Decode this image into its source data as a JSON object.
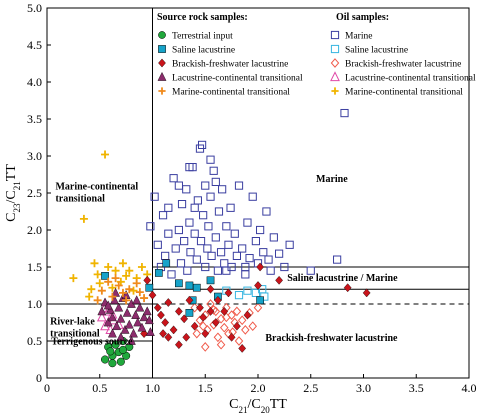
{
  "chart_data": {
    "type": "scatter",
    "xlabel_parts": [
      "C",
      "21",
      "/C",
      "20",
      "TT"
    ],
    "ylabel_parts": [
      "C",
      "23",
      "/C",
      "21",
      "TT"
    ],
    "xlim": [
      0,
      4.0
    ],
    "ylim": [
      0,
      5.0
    ],
    "xticks": [
      "0",
      "0.5",
      "1.0",
      "1.5",
      "2.0",
      "2.5",
      "3.0",
      "3.5",
      "4.0"
    ],
    "yticks": [
      "0",
      "0.5",
      "1.0",
      "1.5",
      "2.0",
      "2.5",
      "3.0",
      "3.5",
      "4.0",
      "4.5",
      "5.0"
    ],
    "grid": false,
    "legend_position": "top",
    "legend_source_title": "Source rock samples:",
    "legend_oil_title": "Oil samples:",
    "legend_source_items": [
      {
        "label": "Terrestrial input",
        "marker": "circle",
        "color": "#20a83c"
      },
      {
        "label": "Saline lacustrine",
        "marker": "square",
        "color": "#16a3c9"
      },
      {
        "label": "Brackish-freshwater lacustrine",
        "marker": "diamond",
        "color": "#c9141b"
      },
      {
        "label": "Lacustrine-continental transitional",
        "marker": "triangle",
        "color": "#8c2c6c"
      },
      {
        "label": "Marine-continental transitional",
        "marker": "plus",
        "color": "#f08a1c"
      }
    ],
    "legend_oil_items": [
      {
        "label": "Marine",
        "marker": "square",
        "color": "#3a3ea0"
      },
      {
        "label": "Saline lacustrine",
        "marker": "square",
        "color": "#36b5e0"
      },
      {
        "label": "Brackish-freshwater lacustrine",
        "marker": "diamond",
        "color": "#f05a4a"
      },
      {
        "label": "Lacustrine-continental transitional",
        "marker": "triangle",
        "color": "#e04aa8"
      },
      {
        "label": "Marine-continental transitional",
        "marker": "plus",
        "color": "#f0b400"
      }
    ],
    "region_labels": [
      {
        "lines": [
          "Marine"
        ]
      },
      {
        "lines": [
          "Marine-continental",
          "transitional"
        ]
      },
      {
        "lines": [
          "Saline lacustrine / Marine"
        ]
      },
      {
        "lines": [
          "River-lake",
          "transitional"
        ]
      },
      {
        "lines": [
          "Brackish-freshwater lacustrine"
        ]
      },
      {
        "lines": [
          "Terrigenous source"
        ]
      }
    ],
    "boundaries": {
      "vertical_x": 1.0,
      "left_horizontal_lines": [
        0.5,
        1.0
      ],
      "right_horizontal_lines": [
        1.2,
        1.5
      ],
      "dashed_y": 1.0
    },
    "series": [
      {
        "group": "source",
        "label": "Terrestrial input",
        "marker": "circle",
        "filled": true,
        "color": "#20a83c",
        "points": [
          [
            0.55,
            0.25
          ],
          [
            0.58,
            0.42
          ],
          [
            0.62,
            0.3
          ],
          [
            0.65,
            0.45
          ],
          [
            0.68,
            0.35
          ],
          [
            0.7,
            0.22
          ],
          [
            0.72,
            0.5
          ],
          [
            0.75,
            0.3
          ],
          [
            0.78,
            0.42
          ],
          [
            0.62,
            0.2
          ],
          [
            0.72,
            0.38
          ],
          [
            0.6,
            0.36
          ]
        ]
      },
      {
        "group": "source",
        "label": "Saline lacustrine",
        "marker": "square",
        "filled": true,
        "color": "#16a3c9",
        "points": [
          [
            0.55,
            1.38
          ],
          [
            0.97,
            1.22
          ],
          [
            1.06,
            1.42
          ],
          [
            1.13,
            1.55
          ],
          [
            1.25,
            1.28
          ],
          [
            1.35,
            1.25
          ],
          [
            1.42,
            1.22
          ],
          [
            1.38,
            1.05
          ],
          [
            1.35,
            0.88
          ],
          [
            1.55,
            1.32
          ],
          [
            1.62,
            1.1
          ],
          [
            2.02,
            1.05
          ]
        ]
      },
      {
        "group": "source",
        "label": "Brackish-freshwater lacustrine",
        "marker": "diamond",
        "filled": true,
        "color": "#c9141b",
        "points": [
          [
            0.95,
            1.32
          ],
          [
            1.0,
            1.12
          ],
          [
            1.05,
            0.95
          ],
          [
            1.08,
            0.85
          ],
          [
            1.12,
            0.75
          ],
          [
            1.15,
            1.02
          ],
          [
            1.2,
            0.65
          ],
          [
            1.25,
            0.9
          ],
          [
            1.3,
            0.8
          ],
          [
            1.32,
            0.55
          ],
          [
            1.35,
            1.05
          ],
          [
            1.4,
            0.7
          ],
          [
            1.45,
            0.95
          ],
          [
            1.48,
            0.82
          ],
          [
            1.5,
            0.6
          ],
          [
            1.55,
            0.9
          ],
          [
            1.6,
            0.75
          ],
          [
            1.62,
            1.05
          ],
          [
            1.68,
            0.9
          ],
          [
            1.75,
            0.55
          ],
          [
            1.8,
            0.7
          ],
          [
            1.85,
            0.4
          ],
          [
            1.9,
            0.85
          ],
          [
            2.0,
            1.25
          ],
          [
            2.02,
            1.5
          ],
          [
            2.2,
            1.32
          ],
          [
            1.25,
            0.45
          ],
          [
            1.15,
            0.55
          ],
          [
            2.85,
            1.22
          ],
          [
            3.03,
            1.15
          ],
          [
            1.72,
            1.15
          ],
          [
            1.55,
            1.2
          ],
          [
            0.92,
            0.6
          ],
          [
            1.1,
            0.6
          ]
        ]
      },
      {
        "group": "source",
        "label": "Lacustrine-continental transitional",
        "marker": "triangle",
        "filled": true,
        "color": "#8c2c6c",
        "points": [
          [
            0.52,
            0.9
          ],
          [
            0.55,
            1.02
          ],
          [
            0.58,
            0.75
          ],
          [
            0.6,
            0.92
          ],
          [
            0.62,
            0.82
          ],
          [
            0.64,
            1.05
          ],
          [
            0.66,
            0.7
          ],
          [
            0.68,
            0.95
          ],
          [
            0.7,
            0.8
          ],
          [
            0.72,
            1.08
          ],
          [
            0.74,
            0.65
          ],
          [
            0.76,
            0.88
          ],
          [
            0.78,
            0.72
          ],
          [
            0.8,
            1.0
          ],
          [
            0.82,
            0.6
          ],
          [
            0.84,
            0.85
          ],
          [
            0.86,
            0.75
          ],
          [
            0.88,
            0.95
          ],
          [
            0.9,
            0.68
          ],
          [
            0.92,
            0.82
          ],
          [
            0.95,
            0.9
          ],
          [
            0.97,
            0.78
          ],
          [
            0.62,
            0.6
          ],
          [
            0.7,
            0.55
          ],
          [
            0.8,
            0.5
          ],
          [
            0.75,
            1.12
          ],
          [
            0.65,
            1.15
          ],
          [
            0.58,
            0.98
          ],
          [
            0.85,
            1.05
          ],
          [
            0.98,
            0.62
          ]
        ]
      },
      {
        "group": "source",
        "label": "Marine-continental transitional",
        "marker": "plus",
        "filled": true,
        "color": "#f08a1c",
        "points": [
          [
            0.48,
            1.05
          ],
          [
            0.52,
            1.18
          ],
          [
            0.58,
            1.3
          ],
          [
            0.62,
            1.1
          ],
          [
            0.68,
            1.25
          ],
          [
            0.72,
            1.15
          ],
          [
            0.78,
            1.2
          ],
          [
            0.85,
            1.28
          ],
          [
            0.92,
            1.08
          ],
          [
            0.65,
            1.35
          ],
          [
            0.75,
            1.05
          ],
          [
            0.88,
            1.16
          ]
        ]
      },
      {
        "group": "oil",
        "label": "Marine",
        "marker": "square",
        "filled": false,
        "color": "#3a3ea0",
        "points": [
          [
            0.98,
            2.05
          ],
          [
            1.02,
            2.45
          ],
          [
            1.05,
            1.8
          ],
          [
            1.08,
            1.5
          ],
          [
            1.1,
            2.2
          ],
          [
            1.12,
            1.65
          ],
          [
            1.15,
            1.95
          ],
          [
            1.18,
            1.4
          ],
          [
            1.2,
            2.7
          ],
          [
            1.22,
            1.75
          ],
          [
            1.25,
            2.0
          ],
          [
            1.27,
            1.55
          ],
          [
            1.28,
            2.35
          ],
          [
            1.3,
            1.85
          ],
          [
            1.32,
            2.55
          ],
          [
            1.33,
            1.45
          ],
          [
            1.35,
            2.1
          ],
          [
            1.36,
            1.7
          ],
          [
            1.38,
            2.85
          ],
          [
            1.4,
            1.95
          ],
          [
            1.42,
            1.6
          ],
          [
            1.43,
            2.4
          ],
          [
            1.45,
            3.1
          ],
          [
            1.46,
            1.85
          ],
          [
            1.47,
            3.15
          ],
          [
            1.48,
            2.2
          ],
          [
            1.5,
            1.5
          ],
          [
            1.5,
            2.6
          ],
          [
            1.52,
            1.75
          ],
          [
            1.53,
            2.05
          ],
          [
            1.55,
            2.45
          ],
          [
            1.56,
            1.65
          ],
          [
            1.58,
            2.8
          ],
          [
            1.6,
            1.9
          ],
          [
            1.62,
            1.45
          ],
          [
            1.63,
            2.25
          ],
          [
            1.65,
            1.7
          ],
          [
            1.66,
            2.55
          ],
          [
            1.68,
            1.55
          ],
          [
            1.7,
            2.05
          ],
          [
            1.72,
            1.8
          ],
          [
            1.74,
            2.3
          ],
          [
            1.75,
            1.5
          ],
          [
            1.78,
            1.95
          ],
          [
            1.8,
            1.65
          ],
          [
            1.82,
            2.6
          ],
          [
            1.85,
            1.75
          ],
          [
            1.88,
            1.5
          ],
          [
            1.9,
            2.1
          ],
          [
            1.92,
            1.62
          ],
          [
            1.95,
            2.45
          ],
          [
            1.98,
            1.85
          ],
          [
            2.0,
            1.55
          ],
          [
            2.02,
            2.0
          ],
          [
            2.05,
            1.7
          ],
          [
            2.08,
            2.25
          ],
          [
            2.1,
            1.6
          ],
          [
            2.12,
            1.45
          ],
          [
            2.15,
            1.9
          ],
          [
            2.2,
            1.68
          ],
          [
            2.25,
            1.5
          ],
          [
            2.3,
            1.8
          ],
          [
            2.5,
            1.45
          ],
          [
            2.75,
            1.6
          ],
          [
            2.82,
            3.58
          ],
          [
            1.25,
            2.6
          ],
          [
            1.15,
            2.3
          ],
          [
            1.4,
            2.3
          ],
          [
            1.6,
            2.65
          ],
          [
            1.7,
            1.45
          ],
          [
            1.55,
            2.95
          ],
          [
            1.35,
            2.85
          ],
          [
            1.88,
            1.4
          ]
        ]
      },
      {
        "group": "oil",
        "label": "Saline lacustrine",
        "marker": "square",
        "filled": false,
        "color": "#36b5e0",
        "points": [
          [
            1.82,
            1.12
          ],
          [
            1.9,
            1.18
          ],
          [
            1.98,
            1.15
          ],
          [
            2.04,
            1.2
          ],
          [
            2.06,
            1.1
          ],
          [
            1.7,
            1.18
          ]
        ]
      },
      {
        "group": "oil",
        "label": "Brackish-freshwater lacustrine",
        "marker": "diamond",
        "filled": false,
        "color": "#f05a4a",
        "points": [
          [
            1.4,
            0.95
          ],
          [
            1.45,
            0.78
          ],
          [
            1.5,
            0.85
          ],
          [
            1.52,
            0.65
          ],
          [
            1.55,
            1.0
          ],
          [
            1.58,
            0.72
          ],
          [
            1.6,
            0.9
          ],
          [
            1.62,
            0.55
          ],
          [
            1.65,
            0.8
          ],
          [
            1.68,
            0.68
          ],
          [
            1.7,
            0.95
          ],
          [
            1.72,
            0.6
          ],
          [
            1.75,
            0.85
          ],
          [
            1.78,
            0.75
          ],
          [
            1.8,
            0.9
          ],
          [
            1.82,
            0.5
          ],
          [
            1.85,
            0.78
          ],
          [
            1.88,
            0.65
          ],
          [
            1.92,
            0.88
          ],
          [
            1.95,
            0.7
          ],
          [
            2.0,
            0.95
          ],
          [
            1.5,
            0.42
          ],
          [
            1.65,
            0.45
          ],
          [
            1.42,
            0.6
          ],
          [
            1.58,
            0.92
          ],
          [
            1.7,
            0.82
          ],
          [
            1.76,
            0.62
          ],
          [
            1.48,
            0.7
          ]
        ]
      },
      {
        "group": "oil",
        "label": "Lacustrine-continental transitional",
        "marker": "triangle",
        "filled": false,
        "color": "#e04aa8",
        "points": [
          [
            0.52,
            0.82
          ],
          [
            0.55,
            0.7
          ],
          [
            0.58,
            0.9
          ],
          [
            0.6,
            0.65
          ],
          [
            0.63,
            0.78
          ],
          [
            0.55,
            0.95
          ],
          [
            0.68,
            0.72
          ],
          [
            0.62,
            0.86
          ]
        ]
      },
      {
        "group": "oil",
        "label": "Marine-continental transitional",
        "marker": "plus",
        "filled": false,
        "color": "#f0b400",
        "points": [
          [
            0.55,
            3.02
          ],
          [
            0.35,
            2.15
          ],
          [
            0.45,
            1.55
          ],
          [
            0.42,
            1.2
          ],
          [
            0.48,
            1.4
          ],
          [
            0.58,
            1.5
          ],
          [
            0.65,
            1.45
          ],
          [
            0.72,
            1.55
          ],
          [
            0.78,
            1.45
          ],
          [
            0.85,
            1.35
          ],
          [
            0.9,
            1.5
          ],
          [
            0.5,
            1.28
          ],
          [
            0.62,
            1.22
          ],
          [
            0.82,
            1.18
          ],
          [
            0.95,
            1.4
          ],
          [
            0.4,
            1.1
          ],
          [
            0.7,
            1.3
          ],
          [
            0.25,
            1.35
          ],
          [
            0.75,
            1.38
          ]
        ]
      }
    ]
  }
}
